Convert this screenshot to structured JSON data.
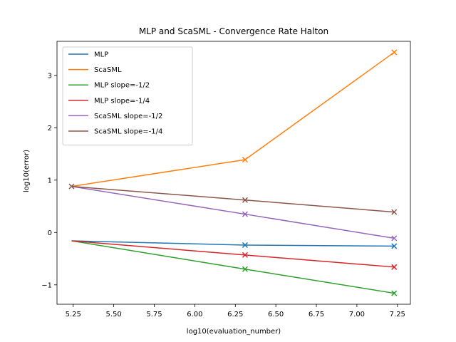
{
  "chart_data": {
    "type": "line",
    "title": "MLP and ScaSML - Convergence Rate Halton",
    "xlabel": "log10(evaluation_number)",
    "ylabel": "log10(error)",
    "xlim": [
      5.15,
      7.33
    ],
    "ylim": [
      -1.37,
      3.65
    ],
    "xticks": [
      "5.25",
      "5.50",
      "5.75",
      "6.00",
      "6.25",
      "6.50",
      "6.75",
      "7.00",
      "7.25"
    ],
    "yticks": [
      "−1",
      "0",
      "1",
      "2",
      "3"
    ],
    "x": [
      5.24,
      6.31,
      7.23
    ],
    "legend_position": "upper left",
    "series": [
      {
        "name": "MLP",
        "color": "#1f77b4",
        "marker": "none",
        "values": [
          -0.16,
          -0.24,
          -0.26
        ]
      },
      {
        "name": "ScaSML",
        "color": "#ff7f0e",
        "marker": "none",
        "values": [
          0.88,
          1.39,
          3.44
        ]
      },
      {
        "name": "MLP slope=-1/2",
        "color": "#2ca02c",
        "marker": "x",
        "values": [
          -0.16,
          -0.7,
          -1.16
        ]
      },
      {
        "name": "MLP slope=-1/4",
        "color": "#d62728",
        "marker": "x",
        "values": [
          -0.16,
          -0.43,
          -0.66
        ]
      },
      {
        "name": "ScaSML slope=-1/2",
        "color": "#9467bd",
        "marker": "x",
        "values": [
          0.88,
          0.35,
          -0.11
        ]
      },
      {
        "name": "ScaSML slope=-1/4",
        "color": "#8c564b",
        "marker": "x",
        "values": [
          0.88,
          0.62,
          0.39
        ]
      }
    ],
    "end_markers": [
      {
        "series": "MLP",
        "color": "#1f77b4",
        "x": [
          6.31,
          7.23
        ],
        "y": [
          -0.24,
          -0.26
        ]
      },
      {
        "series": "ScaSML",
        "color": "#ff7f0e",
        "x": [
          6.31,
          7.23
        ],
        "y": [
          1.39,
          3.44
        ]
      },
      {
        "series": "MLP slope=-1/2",
        "color": "#2ca02c",
        "x": [
          6.31,
          7.23
        ],
        "y": [
          -0.7,
          -1.16
        ]
      },
      {
        "series": "MLP slope=-1/4",
        "color": "#d62728",
        "x": [
          6.31,
          7.23
        ],
        "y": [
          -0.43,
          -0.66
        ]
      },
      {
        "series": "ScaSML slope=-1/2",
        "color": "#9467bd",
        "x": [
          6.31,
          7.23
        ],
        "y": [
          0.35,
          -0.11
        ]
      },
      {
        "series": "ScaSML slope=-1/4",
        "color": "#8c564b",
        "x": [
          5.24,
          6.31,
          7.23
        ],
        "y": [
          0.88,
          0.62,
          0.39
        ]
      }
    ]
  }
}
